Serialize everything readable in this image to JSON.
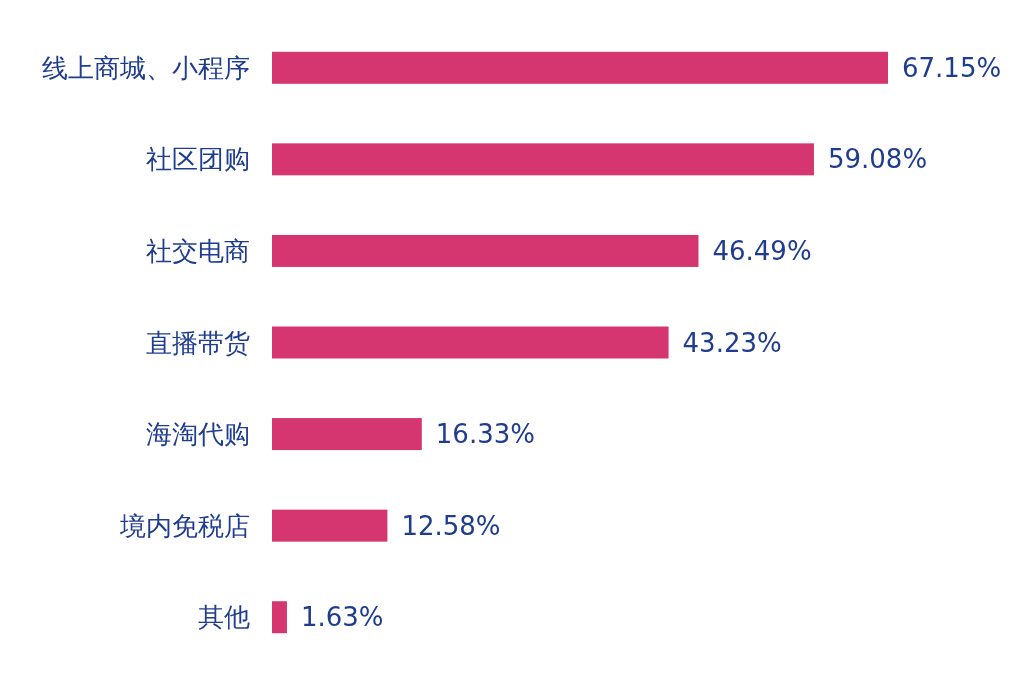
{
  "chart_data": {
    "type": "bar",
    "orientation": "horizontal",
    "categories": [
      "线上商城、小程序",
      "社区团购",
      "社交电商",
      "直播带货",
      "海淘代购",
      "境内免税店",
      "其他"
    ],
    "values": [
      67.15,
      59.08,
      46.49,
      43.23,
      16.33,
      12.58,
      1.63
    ],
    "value_labels": [
      "67.15%",
      "59.08%",
      "46.49%",
      "43.23%",
      "16.33%",
      "12.58%",
      "1.63%"
    ],
    "color": "#d6366f"
  }
}
